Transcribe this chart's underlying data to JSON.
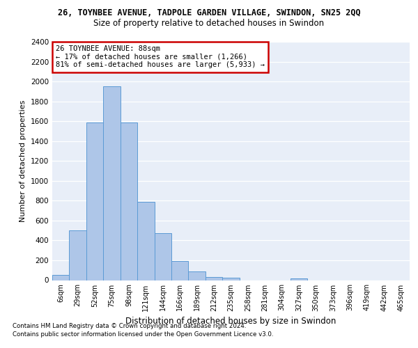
{
  "title": "26, TOYNBEE AVENUE, TADPOLE GARDEN VILLAGE, SWINDON, SN25 2QQ",
  "subtitle": "Size of property relative to detached houses in Swindon",
  "xlabel": "Distribution of detached houses by size in Swindon",
  "ylabel": "Number of detached properties",
  "categories": [
    "6sqm",
    "29sqm",
    "52sqm",
    "75sqm",
    "98sqm",
    "121sqm",
    "144sqm",
    "166sqm",
    "189sqm",
    "212sqm",
    "235sqm",
    "258sqm",
    "281sqm",
    "304sqm",
    "327sqm",
    "350sqm",
    "373sqm",
    "396sqm",
    "419sqm",
    "442sqm",
    "465sqm"
  ],
  "values": [
    55,
    500,
    1590,
    1950,
    1590,
    790,
    470,
    195,
    90,
    35,
    25,
    0,
    0,
    0,
    20,
    0,
    0,
    0,
    0,
    0,
    0
  ],
  "bar_color": "#aec6e8",
  "bar_edge_color": "#5b9bd5",
  "annotation_text": "26 TOYNBEE AVENUE: 88sqm\n← 17% of detached houses are smaller (1,266)\n81% of semi-detached houses are larger (5,933) →",
  "annotation_box_color": "#ffffff",
  "annotation_box_edge_color": "#cc0000",
  "ylim": [
    0,
    2400
  ],
  "yticks": [
    0,
    200,
    400,
    600,
    800,
    1000,
    1200,
    1400,
    1600,
    1800,
    2000,
    2200,
    2400
  ],
  "background_color": "#e8eef8",
  "footer_line1": "Contains HM Land Registry data © Crown copyright and database right 2024.",
  "footer_line2": "Contains public sector information licensed under the Open Government Licence v3.0."
}
